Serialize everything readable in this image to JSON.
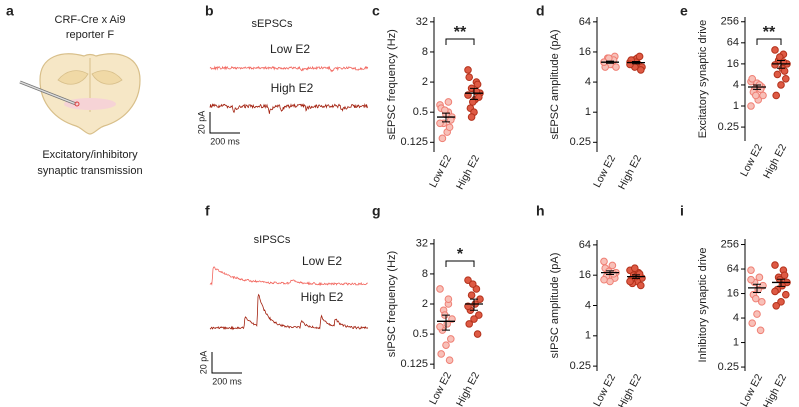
{
  "panel_a": {
    "label": "a",
    "lines": [
      "CRF-Cre x Ai9",
      "reporter F"
    ],
    "caption": [
      "Excitatory/inhibitory",
      "synaptic transmission"
    ]
  },
  "traces": [
    {
      "label": "b",
      "title": "sEPSCs",
      "conditions": [
        "Low E2",
        "High E2"
      ],
      "colors": [
        "#f2665e",
        "#a3210f"
      ],
      "scale_y": "20 pA",
      "scale_x": "200 ms"
    },
    {
      "label": "f",
      "title": "sIPSCs",
      "conditions": [
        "Low E2",
        "High E2"
      ],
      "colors": [
        "#f2665e",
        "#a3210f"
      ],
      "scale_y": "20 pA",
      "scale_x": "200 ms"
    }
  ],
  "chart_data": [
    {
      "type": "strip",
      "panel": "c",
      "ylabel": "sEPSC frequency (Hz)",
      "categories": [
        "Low E2",
        "High E2"
      ],
      "log_base": 2,
      "ylim": [
        0.08,
        40
      ],
      "yticks": [
        0.125,
        0.5,
        2,
        8,
        32
      ],
      "significance": "**",
      "groups": [
        {
          "color": "#f8c0b8",
          "edgecolor": "#ef7f74",
          "values": [
            0.7,
            0.5,
            0.3,
            0.4,
            0.2,
            0.15,
            0.35,
            0.45,
            0.6,
            0.25,
            0.55,
            0.3,
            0.8
          ],
          "mean": 0.4,
          "sem": 0.08
        },
        {
          "color": "#de5a44",
          "edgecolor": "#b3321c",
          "values": [
            3.5,
            2.0,
            1.5,
            1.2,
            0.9,
            0.6,
            1.0,
            0.5,
            2.5,
            1.8,
            0.8,
            1.1,
            1.3,
            0.4
          ],
          "mean": 1.2,
          "sem": 0.3
        }
      ]
    },
    {
      "type": "strip",
      "panel": "d",
      "ylabel": "sEPSC amplitude (pA)",
      "categories": [
        "Low E2",
        "High E2"
      ],
      "log_base": 2,
      "ylim": [
        0.16,
        80
      ],
      "yticks": [
        0.25,
        1,
        4,
        16,
        64
      ],
      "groups": [
        {
          "color": "#f8c0b8",
          "edgecolor": "#ef7f74",
          "values": [
            10,
            9,
            12,
            8,
            11,
            10,
            13,
            9,
            8,
            11,
            12,
            10
          ],
          "mean": 10,
          "sem": 0.5
        },
        {
          "color": "#de5a44",
          "edgecolor": "#b3321c",
          "values": [
            10,
            9,
            11,
            8,
            12,
            9,
            7,
            10,
            11,
            13,
            8,
            9
          ],
          "mean": 9.8,
          "sem": 0.5
        }
      ]
    },
    {
      "type": "strip",
      "panel": "e",
      "ylabel": "Excitatory synaptic drive",
      "categories": [
        "Low E2",
        "High E2"
      ],
      "log_base": 2,
      "ylim": [
        0.1,
        350
      ],
      "yticks": [
        0.25,
        1,
        4,
        16,
        64,
        256
      ],
      "significance": "**",
      "groups": [
        {
          "color": "#f8c0b8",
          "edgecolor": "#ef7f74",
          "values": [
            5,
            4,
            3,
            2,
            1.5,
            2.5,
            3.5,
            4.5,
            6,
            3,
            2,
            1,
            4
          ],
          "mean": 3.5,
          "sem": 0.5
        },
        {
          "color": "#de5a44",
          "edgecolor": "#b3321c",
          "values": [
            40,
            30,
            20,
            16,
            12,
            8,
            6,
            4,
            2,
            10,
            25,
            15,
            18
          ],
          "mean": 16,
          "sem": 4
        }
      ]
    },
    {
      "type": "strip",
      "panel": "g",
      "ylabel": "sIPSC frequency (Hz)",
      "categories": [
        "Low E2",
        "High E2"
      ],
      "log_base": 2,
      "ylim": [
        0.1,
        40
      ],
      "yticks": [
        0.125,
        0.5,
        2,
        8,
        32
      ],
      "significance": "*",
      "groups": [
        {
          "color": "#f8c0b8",
          "edgecolor": "#ef7f74",
          "values": [
            4,
            2,
            1.5,
            1,
            0.8,
            0.6,
            0.4,
            0.3,
            0.2,
            0.15,
            1.2,
            0.7,
            2.5
          ],
          "mean": 0.9,
          "sem": 0.3
        },
        {
          "color": "#de5a44",
          "edgecolor": "#b3321c",
          "values": [
            6,
            4,
            3,
            2.5,
            2,
            1.5,
            1.2,
            1,
            0.8,
            0.5,
            5,
            1.8
          ],
          "mean": 2,
          "sem": 0.5
        }
      ]
    },
    {
      "type": "strip",
      "panel": "h",
      "ylabel": "sIPSC amplitude (pA)",
      "categories": [
        "Low E2",
        "High E2"
      ],
      "log_base": 2,
      "ylim": [
        0.2,
        80
      ],
      "yticks": [
        0.25,
        1,
        4,
        16,
        64
      ],
      "groups": [
        {
          "color": "#f8c0b8",
          "edgecolor": "#ef7f74",
          "values": [
            30,
            25,
            20,
            18,
            16,
            15,
            14,
            12,
            22,
            17,
            19,
            13
          ],
          "mean": 18,
          "sem": 1.5
        },
        {
          "color": "#de5a44",
          "edgecolor": "#b3321c",
          "values": [
            20,
            18,
            16,
            14,
            12,
            11,
            10,
            15,
            13,
            17,
            22,
            12
          ],
          "mean": 15,
          "sem": 1.2
        }
      ]
    },
    {
      "type": "strip",
      "panel": "i",
      "ylabel": "Inhibitory synaptic drive",
      "categories": [
        "Low E2",
        "High E2"
      ],
      "log_base": 2,
      "ylim": [
        0.2,
        350
      ],
      "yticks": [
        0.25,
        1,
        4,
        16,
        64,
        256
      ],
      "groups": [
        {
          "color": "#f8c0b8",
          "edgecolor": "#ef7f74",
          "values": [
            60,
            40,
            30,
            25,
            20,
            15,
            10,
            5,
            3,
            2,
            12,
            35
          ],
          "mean": 22,
          "sem": 5
        },
        {
          "color": "#de5a44",
          "edgecolor": "#b3321c",
          "values": [
            80,
            60,
            40,
            30,
            25,
            20,
            15,
            10,
            8,
            45,
            35,
            18
          ],
          "mean": 30,
          "sem": 6
        }
      ]
    }
  ]
}
